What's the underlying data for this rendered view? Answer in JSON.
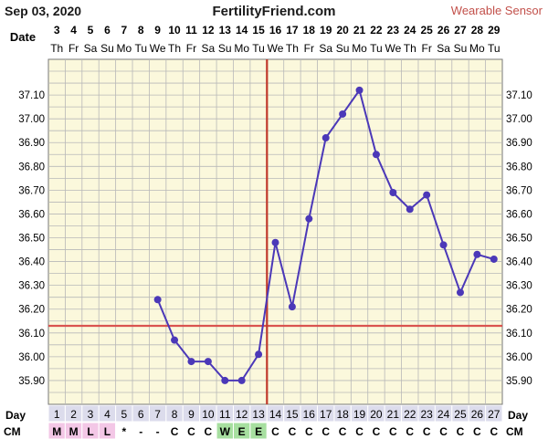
{
  "header": {
    "date": "Sep 03, 2020",
    "site": "FertilityFriend.com",
    "sensor": "Wearable Sensor"
  },
  "labels": {
    "date": "Date",
    "day": "Day",
    "cm": "CM"
  },
  "colors": {
    "background": "#fbf8dc",
    "grid": "#b8b8b8",
    "line": "#4b38b8",
    "marker": "#4b38b8",
    "coverline": "#d9534f",
    "ovulation": "#c0392b",
    "day_cells": "#dcdcec",
    "cm_menstrual": "#f3c7e6",
    "cm_eggwhite": "#a7dfa0"
  },
  "chart_data": {
    "type": "line",
    "title": "",
    "xlabel": "Day",
    "ylabel": "",
    "ylim": [
      35.8,
      37.25
    ],
    "y_ticks": [
      "37.10",
      "37.00",
      "36.90",
      "36.80",
      "36.70",
      "36.60",
      "36.50",
      "36.40",
      "36.30",
      "36.20",
      "36.10",
      "36.00",
      "35.90"
    ],
    "y_tick_values": [
      37.1,
      37.0,
      36.9,
      36.8,
      36.7,
      36.6,
      36.5,
      36.4,
      36.3,
      36.2,
      36.1,
      36.0,
      35.9
    ],
    "dates": [
      "3",
      "4",
      "5",
      "6",
      "7",
      "8",
      "9",
      "10",
      "11",
      "12",
      "13",
      "14",
      "15",
      "16",
      "17",
      "18",
      "19",
      "20",
      "21",
      "22",
      "23",
      "24",
      "25",
      "26",
      "27",
      "28",
      "29"
    ],
    "weekdays": [
      "Th",
      "Fr",
      "Sa",
      "Su",
      "Mo",
      "Tu",
      "We",
      "Th",
      "Fr",
      "Sa",
      "Su",
      "Mo",
      "Tu",
      "We",
      "Th",
      "Fr",
      "Sa",
      "Su",
      "Mo",
      "Tu",
      "We",
      "Th",
      "Fr",
      "Sa",
      "Su",
      "Mo",
      "Tu"
    ],
    "days": [
      "1",
      "2",
      "3",
      "4",
      "5",
      "6",
      "7",
      "8",
      "9",
      "10",
      "11",
      "12",
      "13",
      "14",
      "15",
      "16",
      "17",
      "18",
      "19",
      "20",
      "21",
      "22",
      "23",
      "24",
      "25",
      "26",
      "27"
    ],
    "cervical_mucus": [
      "M",
      "M",
      "L",
      "L",
      "*",
      "-",
      "-",
      "C",
      "C",
      "C",
      "W",
      "E",
      "E",
      "C",
      "C",
      "C",
      "C",
      "C",
      "C",
      "C",
      "C",
      "C",
      "C",
      "C",
      "C",
      "C",
      "C"
    ],
    "series": [
      {
        "values": [
          null,
          null,
          null,
          null,
          null,
          null,
          36.24,
          36.07,
          35.98,
          35.98,
          35.9,
          35.9,
          36.01,
          36.48,
          36.21,
          36.58,
          36.92,
          37.02,
          37.12,
          36.85,
          36.69,
          36.62,
          36.68,
          36.47,
          36.27,
          36.43,
          36.41
        ]
      }
    ],
    "coverline": 36.13,
    "ovulation_day": 13,
    "grid": true
  }
}
